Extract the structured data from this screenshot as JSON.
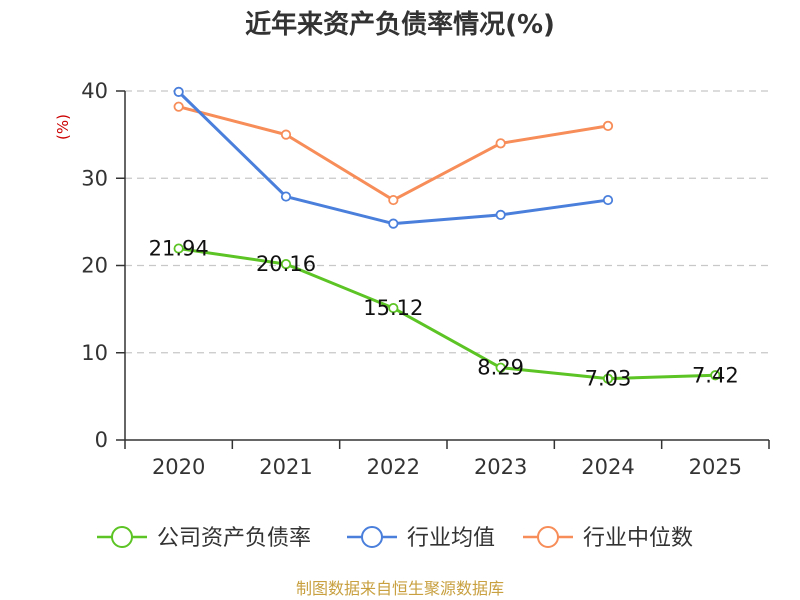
{
  "chart_data": {
    "type": "line",
    "title": "近年来资产负债率情况(%)",
    "ylabel": "(%)",
    "categories": [
      "2020",
      "2021",
      "2022",
      "2023",
      "2024",
      "2025"
    ],
    "ylim": [
      0,
      40
    ],
    "yticks": [
      0,
      10,
      20,
      30,
      40
    ],
    "grid": true,
    "legend_position": "bottom",
    "series": [
      {
        "name": "公司资产负债率",
        "color": "#5cc424",
        "values": [
          21.94,
          20.16,
          15.12,
          8.29,
          7.03,
          7.42
        ],
        "show_labels": true
      },
      {
        "name": "行业均值",
        "color": "#4a7fdc",
        "values": [
          39.9,
          27.9,
          24.8,
          25.8,
          27.5,
          null
        ],
        "show_labels": false
      },
      {
        "name": "行业中位数",
        "color": "#f78d58",
        "values": [
          38.2,
          35.0,
          27.5,
          34.0,
          36.0,
          null
        ],
        "show_labels": false
      }
    ],
    "data_labels": [
      "21.94",
      "20.16",
      "15.12",
      "8.29",
      "7.03",
      "7.42"
    ]
  },
  "footer": {
    "source": "制图数据来自恒生聚源数据库"
  }
}
